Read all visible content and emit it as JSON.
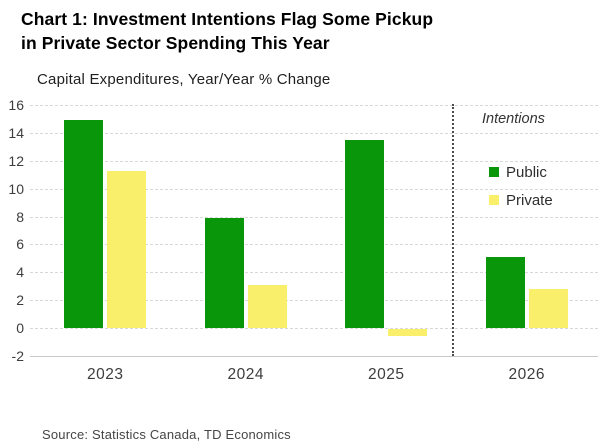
{
  "header": {
    "title": "Chart 1: Investment Intentions Flag Some Pickup\nin Private Sector Spending This Year",
    "subtitle": "Capital Expenditures, Year/Year % Change"
  },
  "chart_data": {
    "type": "bar",
    "categories": [
      "2023",
      "2024",
      "2025",
      "2026"
    ],
    "series": [
      {
        "name": "Public",
        "color": "#0A960A",
        "values": [
          14.9,
          7.9,
          13.5,
          5.1
        ]
      },
      {
        "name": "Private",
        "color": "#F9EF6B",
        "values": [
          11.3,
          3.1,
          -0.5,
          2.8
        ]
      }
    ],
    "ylim": [
      -2,
      16
    ],
    "ytick_step": 2,
    "grid": "horizontal",
    "legend_position": "inside-right",
    "annotations": [
      {
        "text": "Intentions",
        "style": "italic",
        "region": "2026"
      }
    ],
    "divider": {
      "after_category": "2025",
      "style": "dotted-vertical"
    }
  },
  "footer": {
    "source": "Source: Statistics Canada, TD Economics"
  }
}
